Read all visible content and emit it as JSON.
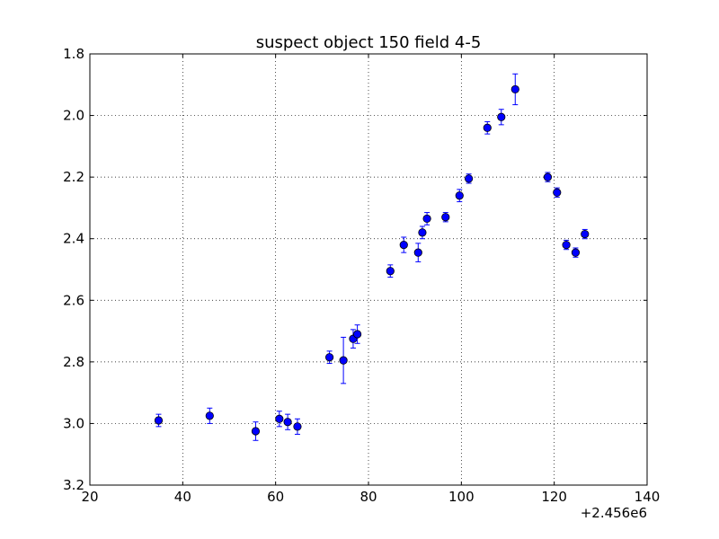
{
  "chart_data": {
    "type": "scatter",
    "title": "suspect object 150 field 4-5",
    "xlabel": "",
    "ylabel": "",
    "x_offset_label": "+2.456e6",
    "xlim": [
      20,
      140
    ],
    "ylim": [
      3.2,
      1.8
    ],
    "y_inverted": true,
    "grid": true,
    "x_ticks": [
      "20",
      "40",
      "60",
      "80",
      "100",
      "120",
      "140"
    ],
    "y_ticks": [
      "1.8",
      "2.0",
      "2.2",
      "2.4",
      "2.6",
      "2.8",
      "3.0",
      "3.2"
    ],
    "marker_color": "#0000ff",
    "errorbar_color": "#0000ff",
    "points": [
      {
        "x": 34.8,
        "y": 2.99,
        "err": 0.02
      },
      {
        "x": 45.8,
        "y": 2.975,
        "err": 0.025
      },
      {
        "x": 55.7,
        "y": 3.025,
        "err": 0.03
      },
      {
        "x": 60.8,
        "y": 2.985,
        "err": 0.025
      },
      {
        "x": 62.6,
        "y": 2.995,
        "err": 0.025
      },
      {
        "x": 64.7,
        "y": 3.01,
        "err": 0.025
      },
      {
        "x": 71.6,
        "y": 2.785,
        "err": 0.02
      },
      {
        "x": 74.6,
        "y": 2.795,
        "err": 0.075
      },
      {
        "x": 76.7,
        "y": 2.725,
        "err": 0.03
      },
      {
        "x": 77.6,
        "y": 2.71,
        "err": 0.03
      },
      {
        "x": 84.7,
        "y": 2.505,
        "err": 0.02
      },
      {
        "x": 87.6,
        "y": 2.42,
        "err": 0.025
      },
      {
        "x": 90.7,
        "y": 2.445,
        "err": 0.03
      },
      {
        "x": 91.6,
        "y": 2.38,
        "err": 0.02
      },
      {
        "x": 92.6,
        "y": 2.335,
        "err": 0.02
      },
      {
        "x": 96.6,
        "y": 2.33,
        "err": 0.015
      },
      {
        "x": 99.6,
        "y": 2.26,
        "err": 0.02
      },
      {
        "x": 101.6,
        "y": 2.205,
        "err": 0.015
      },
      {
        "x": 105.6,
        "y": 2.04,
        "err": 0.02
      },
      {
        "x": 108.6,
        "y": 2.005,
        "err": 0.025
      },
      {
        "x": 111.6,
        "y": 1.915,
        "err": 0.05
      },
      {
        "x": 118.6,
        "y": 2.2,
        "err": 0.015
      },
      {
        "x": 120.6,
        "y": 2.25,
        "err": 0.015
      },
      {
        "x": 122.6,
        "y": 2.42,
        "err": 0.015
      },
      {
        "x": 124.6,
        "y": 2.445,
        "err": 0.015
      },
      {
        "x": 126.6,
        "y": 2.385,
        "err": 0.015
      }
    ]
  }
}
